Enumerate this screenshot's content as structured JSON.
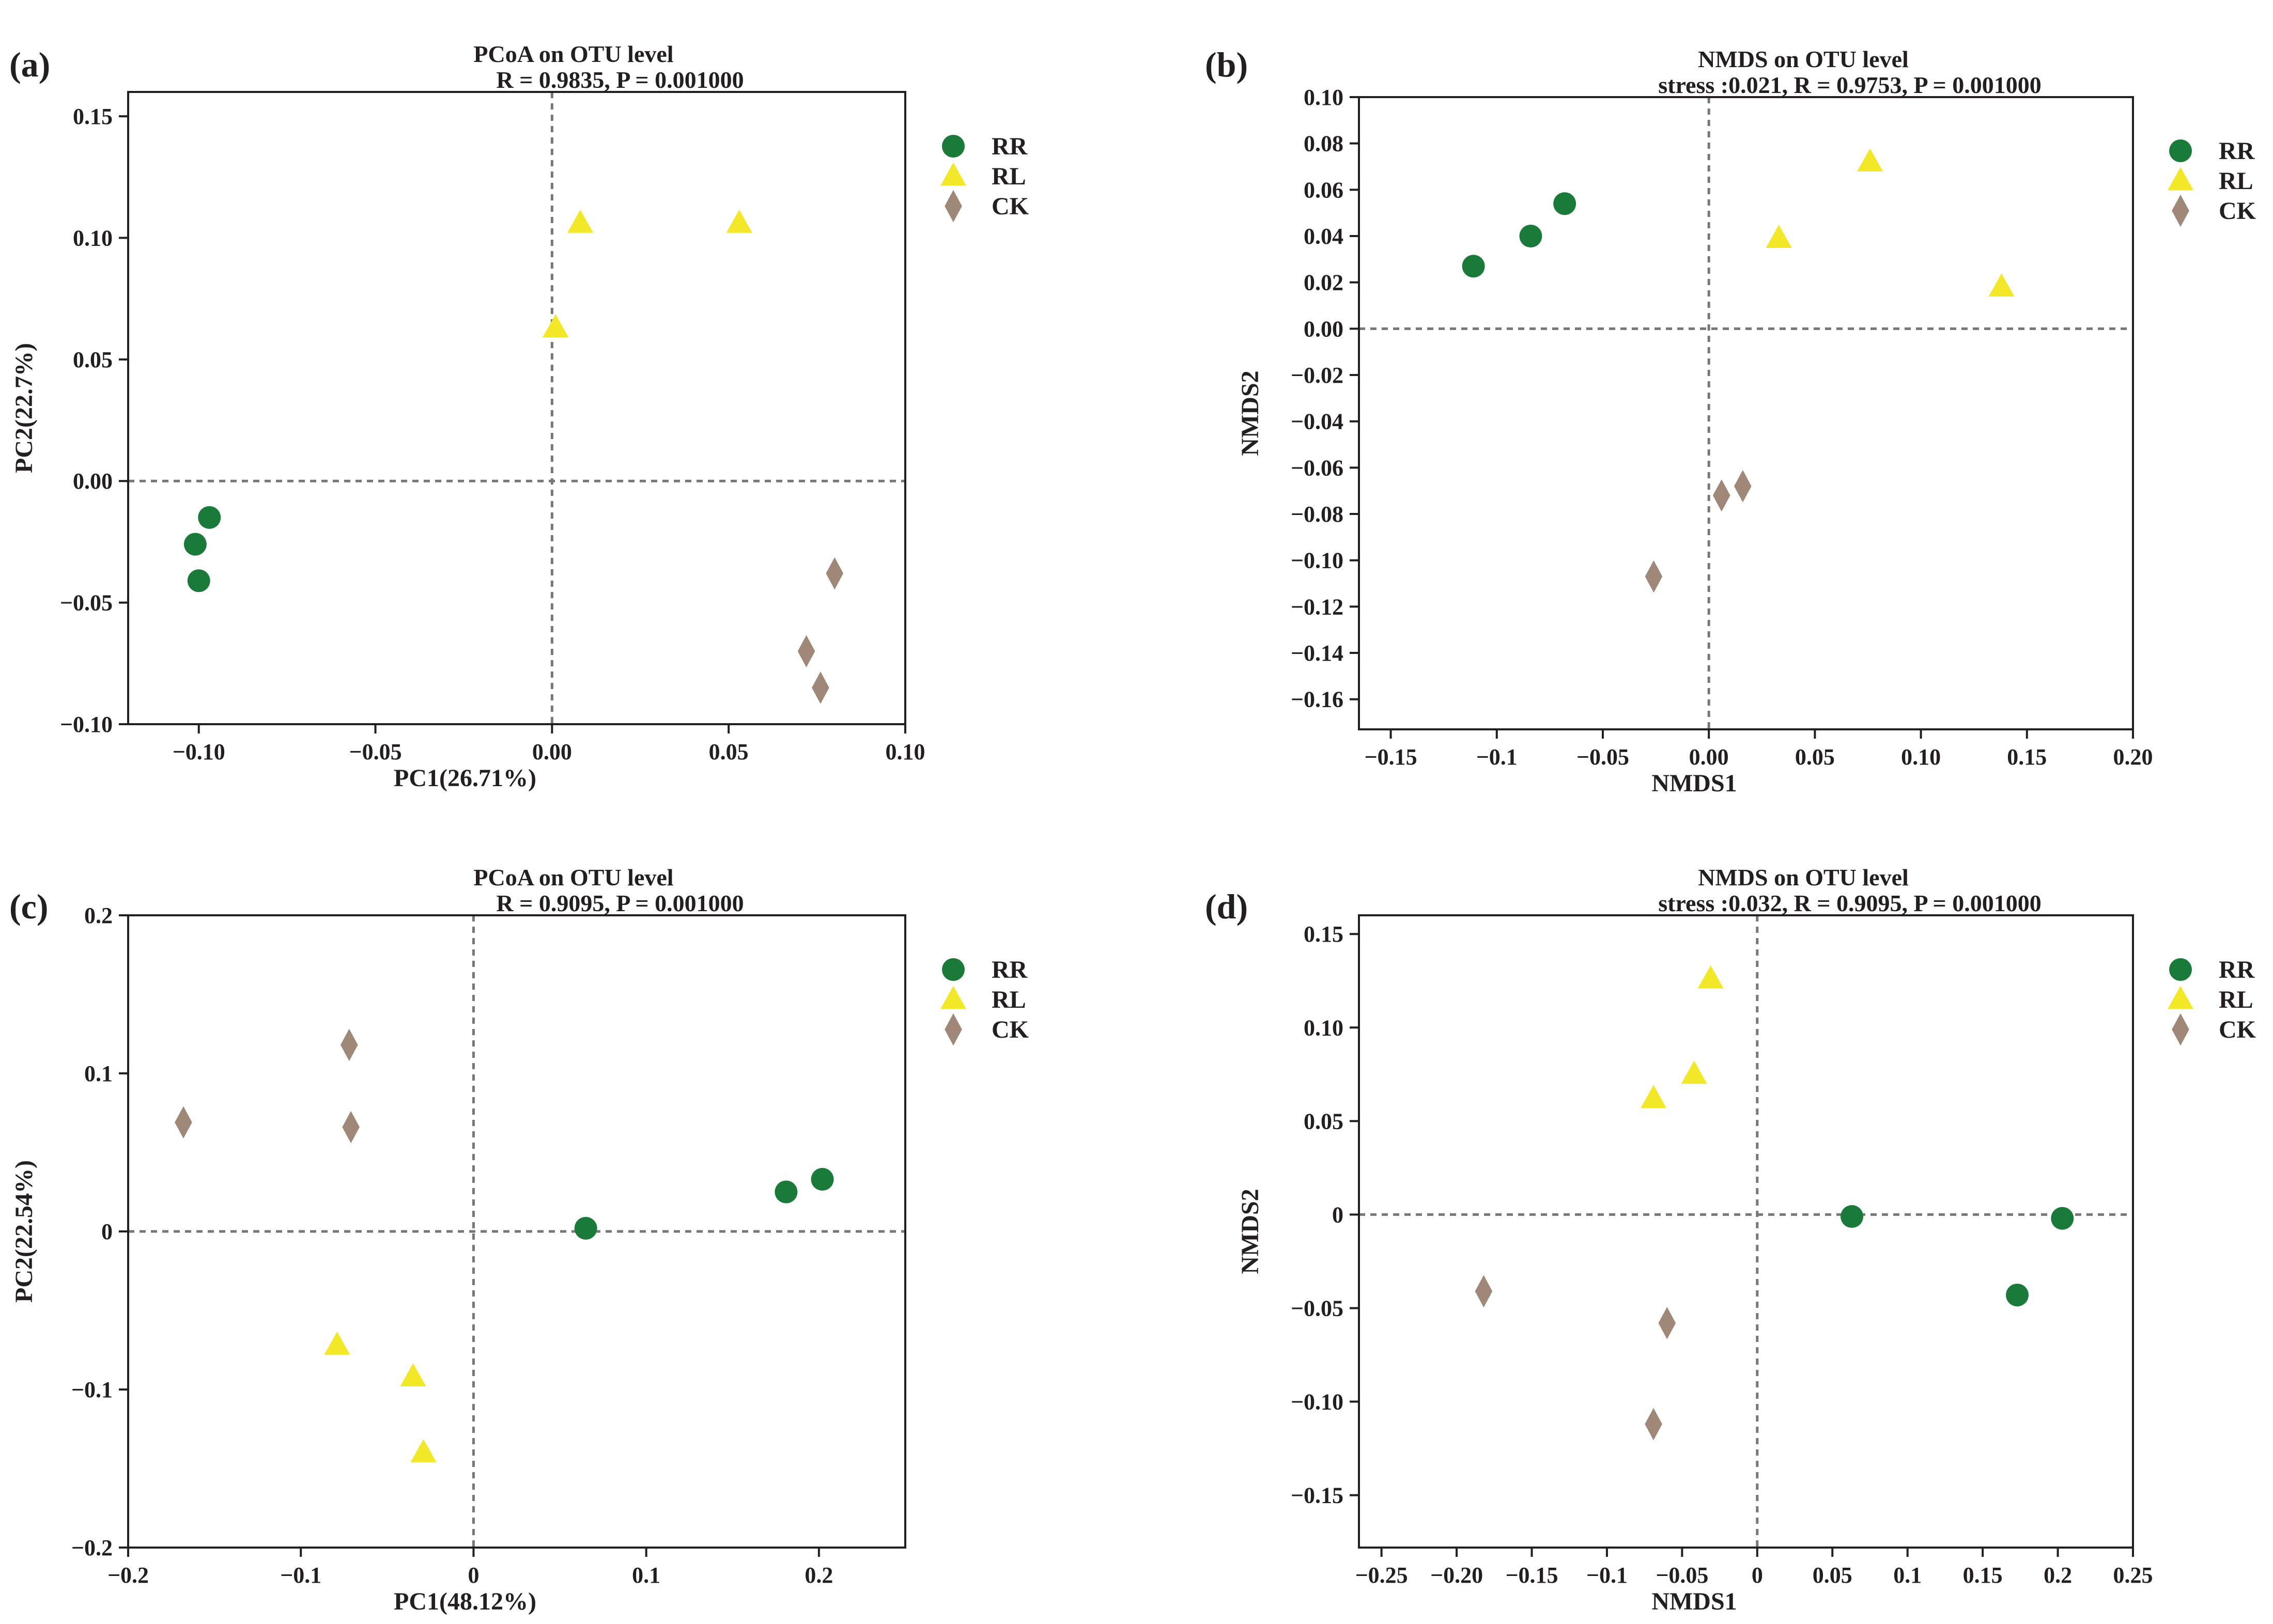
{
  "colors": {
    "RR": "#1a7a3a",
    "RL": "#f2e827",
    "CK": "#a08878",
    "axis": "#231f20",
    "refline": "#777777"
  },
  "legend": [
    {
      "label": "RR",
      "marker": "circle"
    },
    {
      "label": "RL",
      "marker": "triangle"
    },
    {
      "label": "CK",
      "marker": "diamond"
    }
  ],
  "chart_data": [
    {
      "panel": "(a)",
      "type": "scatter",
      "title": "PCoA on OTU level",
      "subtitle": "R = 0.9835, P = 0.001000",
      "xlabel": "PC1(26.71%)",
      "ylabel": "PC2(22.7%)",
      "xlim": [
        -0.12,
        0.1
      ],
      "ylim": [
        -0.1,
        0.16
      ],
      "xticks": [
        -0.1,
        -0.05,
        0.0,
        0.05,
        0.1
      ],
      "xtick_labels": [
        "−0.10",
        "−0.05",
        "0.00",
        "0.05",
        "0.10"
      ],
      "yticks": [
        -0.1,
        -0.05,
        0.0,
        0.05,
        0.1,
        0.15
      ],
      "ytick_labels": [
        "−0.10",
        "−0.05",
        "0.00",
        "0.05",
        "0.10",
        "0.15"
      ],
      "series": [
        {
          "name": "RR",
          "points": [
            [
              -0.097,
              -0.015
            ],
            [
              -0.101,
              -0.026
            ],
            [
              -0.1,
              -0.041
            ]
          ]
        },
        {
          "name": "RL",
          "points": [
            [
              0.008,
              0.106
            ],
            [
              0.053,
              0.106
            ],
            [
              0.001,
              0.063
            ]
          ]
        },
        {
          "name": "CK",
          "points": [
            [
              0.08,
              -0.038
            ],
            [
              0.072,
              -0.07
            ],
            [
              0.076,
              -0.085
            ]
          ]
        }
      ]
    },
    {
      "panel": "(b)",
      "type": "scatter",
      "title": "NMDS on OTU level",
      "subtitle": "stress :0.021, R = 0.9753, P = 0.001000",
      "xlabel": "NMDS1",
      "ylabel": "NMDS2",
      "xlim": [
        -0.165,
        0.2
      ],
      "ylim": [
        -0.173,
        0.1
      ],
      "xticks": [
        -0.15,
        -0.1,
        -0.05,
        0.0,
        0.05,
        0.1,
        0.15,
        0.2
      ],
      "xtick_labels": [
        "−0.15",
        "−0.1",
        "−0.05",
        "0.00",
        "0.05",
        "0.10",
        "0.15",
        "0.20"
      ],
      "yticks": [
        0.1,
        0.08,
        0.06,
        0.04,
        0.02,
        0.0,
        -0.02,
        -0.04,
        -0.06,
        -0.08,
        -0.1,
        -0.12,
        -0.14,
        -0.16
      ],
      "ytick_labels": [
        "0.10",
        "0.08",
        "0.06",
        "0.04",
        "0.02",
        "0.00",
        "−0.02",
        "−0.04",
        "−0.06",
        "−0.08",
        "−0.10",
        "−0.12",
        "−0.14",
        "−0.16"
      ],
      "series": [
        {
          "name": "RR",
          "points": [
            [
              -0.111,
              0.027
            ],
            [
              -0.084,
              0.04
            ],
            [
              -0.068,
              0.054
            ]
          ]
        },
        {
          "name": "RL",
          "points": [
            [
              0.033,
              0.039
            ],
            [
              0.076,
              0.072
            ],
            [
              0.138,
              0.018
            ]
          ]
        },
        {
          "name": "CK",
          "points": [
            [
              0.006,
              -0.072
            ],
            [
              0.016,
              -0.068
            ],
            [
              -0.026,
              -0.107
            ]
          ]
        }
      ]
    },
    {
      "panel": "(c)",
      "type": "scatter",
      "title": "PCoA on OTU level",
      "subtitle": "R = 0.9095, P = 0.001000",
      "xlabel": "PC1(48.12%)",
      "ylabel": "PC2(22.54%)",
      "xlim": [
        -0.2,
        0.25
      ],
      "ylim": [
        -0.2,
        0.2
      ],
      "xticks": [
        -0.2,
        -0.1,
        0.0,
        0.1,
        0.2
      ],
      "xtick_labels": [
        "−0.2",
        "−0.1",
        "0",
        "0.1",
        "0.2"
      ],
      "yticks": [
        -0.2,
        -0.1,
        0.0,
        0.1,
        0.2
      ],
      "ytick_labels": [
        "−0.2",
        "−0.1",
        "0",
        "0.1",
        "0.2"
      ],
      "series": [
        {
          "name": "RR",
          "points": [
            [
              0.065,
              0.002
            ],
            [
              0.181,
              0.025
            ],
            [
              0.202,
              0.033
            ]
          ]
        },
        {
          "name": "RL",
          "points": [
            [
              -0.079,
              -0.072
            ],
            [
              -0.035,
              -0.092
            ],
            [
              -0.029,
              -0.14
            ]
          ]
        },
        {
          "name": "CK",
          "points": [
            [
              -0.168,
              0.069
            ],
            [
              -0.072,
              0.118
            ],
            [
              -0.071,
              0.066
            ]
          ]
        }
      ]
    },
    {
      "panel": "(d)",
      "type": "scatter",
      "title": "NMDS on OTU level",
      "subtitle": "stress :0.032, R = 0.9095, P = 0.001000",
      "xlabel": "NMDS1",
      "ylabel": "NMDS2",
      "xlim": [
        -0.265,
        0.25
      ],
      "ylim": [
        -0.178,
        0.16
      ],
      "xticks": [
        -0.25,
        -0.2,
        -0.15,
        -0.1,
        -0.05,
        0.0,
        0.05,
        0.1,
        0.15,
        0.2,
        0.25
      ],
      "xtick_labels": [
        "−0.25",
        "−0.20",
        "−0.15",
        "−0.1",
        "−0.05",
        "0",
        "0.05",
        "0.1",
        "0.15",
        "0.2",
        "0.25"
      ],
      "yticks": [
        0.15,
        0.1,
        0.05,
        0.0,
        -0.05,
        -0.1,
        -0.15
      ],
      "ytick_labels": [
        "0.15",
        "0.10",
        "0.05",
        "0",
        "−0.05",
        "−0.10",
        "−0.15"
      ],
      "series": [
        {
          "name": "RR",
          "points": [
            [
              0.063,
              -0.001
            ],
            [
              0.203,
              -0.002
            ],
            [
              0.173,
              -0.043
            ]
          ]
        },
        {
          "name": "RL",
          "points": [
            [
              -0.031,
              0.126
            ],
            [
              -0.042,
              0.075
            ],
            [
              -0.069,
              0.062
            ]
          ]
        },
        {
          "name": "CK",
          "points": [
            [
              -0.182,
              -0.041
            ],
            [
              -0.06,
              -0.058
            ],
            [
              -0.069,
              -0.112
            ]
          ]
        }
      ]
    }
  ]
}
